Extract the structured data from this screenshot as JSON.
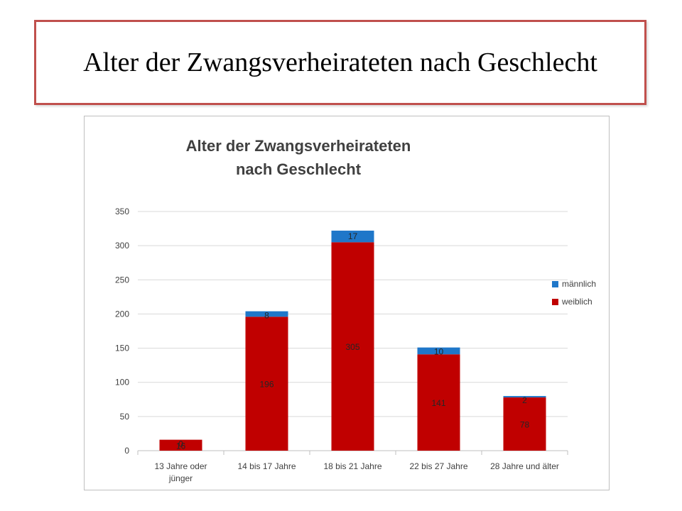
{
  "slide": {
    "title": "Alter der Zwangsverheirateten nach Geschlecht"
  },
  "colors": {
    "weiblich": "#c00000",
    "maennlich": "#1f77c9",
    "grid": "#d9d9d9",
    "axis_text": "#404040",
    "title_border": "#c0504d"
  },
  "chart_data": {
    "type": "bar",
    "stacked": true,
    "title_lines": [
      "Alter der Zwangsverheirateten",
      "nach Geschlecht"
    ],
    "categories": [
      [
        "13 Jahre oder",
        "jünger"
      ],
      [
        "14 bis 17 Jahre"
      ],
      [
        "18 bis 21 Jahre"
      ],
      [
        "22 bis 27 Jahre"
      ],
      [
        "28 Jahre und älter"
      ]
    ],
    "series": [
      {
        "name": "weiblich",
        "values": [
          16,
          196,
          305,
          141,
          78
        ],
        "labels": [
          "16",
          "196",
          "305",
          "141",
          "78"
        ]
      },
      {
        "name": "männlich",
        "values": [
          0,
          8,
          17,
          10,
          2
        ],
        "labels": [
          "0",
          "8",
          "17",
          "10",
          "2"
        ]
      }
    ],
    "legend_order": [
      "männlich",
      "weiblich"
    ],
    "ylim": [
      0,
      350
    ],
    "yticks": [
      "0",
      "50",
      "100",
      "150",
      "200",
      "250",
      "300",
      "350"
    ],
    "ytick_values": [
      0,
      50,
      100,
      150,
      200,
      250,
      300,
      350
    ],
    "grid": true,
    "legend_position": "right",
    "xlabel": "",
    "ylabel": ""
  }
}
